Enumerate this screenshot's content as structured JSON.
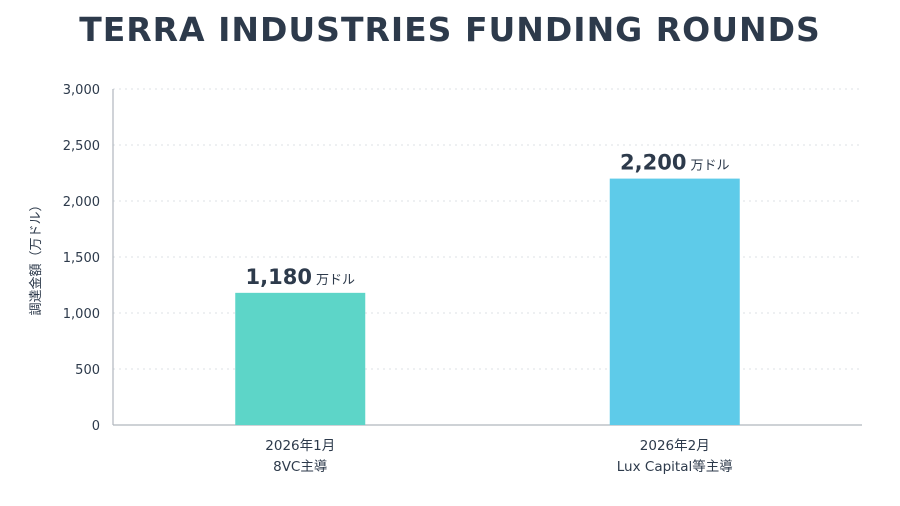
{
  "chart_data": {
    "type": "bar",
    "title": "TERRA INDUSTRIES FUNDING ROUNDS",
    "ylabel": "調達金額（万ドル）",
    "xlabel": "",
    "ylim": [
      0,
      3000
    ],
    "yticks": [
      0,
      500,
      1000,
      1500,
      2000,
      2500,
      3000
    ],
    "ytick_labels": [
      "0",
      "500",
      "1,000",
      "1,500",
      "2,000",
      "2,500",
      "3,000"
    ],
    "grid": true,
    "categories": [
      [
        "2026年1月",
        "8VC主導"
      ],
      [
        "2026年2月",
        "Lux Capital等主導"
      ]
    ],
    "values": [
      1180,
      2200
    ],
    "value_labels": [
      "1,180",
      "2,200"
    ],
    "value_unit": "万ドル",
    "bar_colors": [
      "#5dd5c8",
      "#5ecbe9"
    ]
  },
  "colors": {
    "text": "#2d3a4b",
    "axis": "#b0b6bd",
    "grid": "#dde1e5"
  }
}
